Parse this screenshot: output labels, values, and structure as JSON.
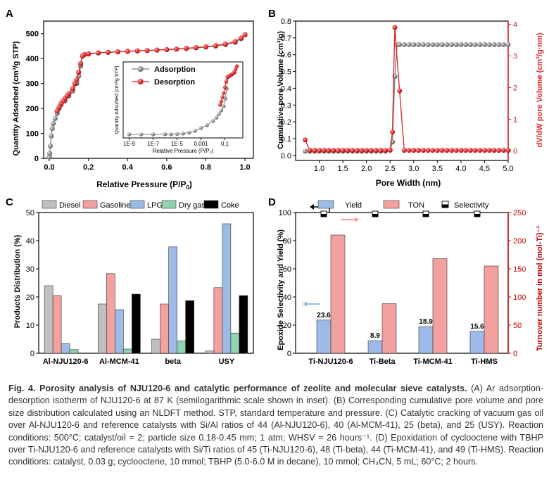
{
  "panels": {
    "A": {
      "letter": "A",
      "xlabel": "Relative Pressure (P/P",
      "xlabel_sub": "0",
      "xlabel_end": ")",
      "ylabel": "Quantity Adsorbed (cm³/g STP)"
    },
    "B": {
      "letter": "B",
      "xlabel": "Pore Width (nm)",
      "ylabel_left": "Cumulative pore Volume (cm³/g)",
      "ylabel_right": "dV/dW pore Volume (cm³/g·nm)"
    },
    "C": {
      "letter": "C",
      "ylabel": "Products Distribution (%)"
    },
    "D": {
      "letter": "D",
      "ylabel_left": "Epoxide Selectivity and Yield (%)",
      "ylabel_right": "Turnover number in mol (mol-Ti)⁻¹"
    }
  },
  "chart_data": [
    {
      "panel": "A",
      "type": "line",
      "xlim": [
        0,
        1
      ],
      "ylim": [
        0,
        550
      ],
      "xticks": [
        "0.0",
        "0.2",
        "0.4",
        "0.6",
        "0.8",
        "1.0"
      ],
      "yticks": [
        "0",
        "100",
        "200",
        "300",
        "400",
        "500"
      ],
      "legend_placement": "inset",
      "series": [
        {
          "name": "Adsorption",
          "color": "#7f7f7f",
          "x": [
            0.0,
            0.002,
            0.005,
            0.01,
            0.015,
            0.02,
            0.03,
            0.04,
            0.05,
            0.06,
            0.08,
            0.1,
            0.12,
            0.14,
            0.15,
            0.16,
            0.17,
            0.2,
            0.25,
            0.3,
            0.35,
            0.4,
            0.45,
            0.5,
            0.55,
            0.6,
            0.65,
            0.7,
            0.75,
            0.8,
            0.85,
            0.9,
            0.95,
            0.98,
            1.0
          ],
          "y": [
            5,
            20,
            50,
            90,
            120,
            140,
            160,
            180,
            200,
            215,
            230,
            250,
            270,
            300,
            330,
            370,
            410,
            418,
            422,
            425,
            427,
            429,
            430,
            432,
            434,
            436,
            438,
            440,
            443,
            446,
            450,
            456,
            465,
            480,
            495
          ]
        },
        {
          "name": "Desorption",
          "color": "#e02020",
          "x": [
            1.0,
            0.98,
            0.95,
            0.9,
            0.85,
            0.8,
            0.75,
            0.7,
            0.65,
            0.6,
            0.55,
            0.5,
            0.45,
            0.4,
            0.35,
            0.3,
            0.25,
            0.2,
            0.18,
            0.17,
            0.16,
            0.15,
            0.14,
            0.13,
            0.12,
            0.1,
            0.09,
            0.08,
            0.07,
            0.06,
            0.05,
            0.04
          ],
          "y": [
            495,
            482,
            468,
            458,
            452,
            447,
            444,
            441,
            438,
            436,
            434,
            432,
            431,
            429,
            427,
            425,
            423,
            419,
            416,
            410,
            380,
            345,
            315,
            300,
            280,
            260,
            250,
            240,
            230,
            220,
            205,
            190
          ]
        }
      ],
      "inset": {
        "xlabel": "Relative Pressure (P/P₀)",
        "ylabel": "Quantity Adsorbed (cm³/g STP)",
        "xticks": [
          "1E-9",
          "1E-7",
          "1E-5",
          "0.001",
          "0.1"
        ],
        "series": [
          {
            "name": "Adsorption",
            "color": "#7f7f7f",
            "logx": [
              -9,
              -8,
              -7,
              -6,
              -5.5,
              -5,
              -4.5,
              -4,
              -3.5,
              -3,
              -2.5,
              -2,
              -1.7,
              -1.5,
              -1.3,
              -1.1,
              -0.95,
              -0.85,
              -0.75,
              -0.6,
              -0.4,
              -0.2,
              0
            ],
            "y": [
              5,
              5,
              5,
              6,
              6,
              8,
              11,
              18,
              30,
              50,
              70,
              100,
              125,
              150,
              175,
              205,
              260,
              330,
              410,
              422,
              432,
              445,
              490
            ]
          },
          {
            "name": "Desorption",
            "color": "#e02020",
            "logx": [
              0,
              -0.1,
              -0.2,
              -0.3,
              -0.4,
              -0.5,
              -0.6,
              -0.7,
              -0.8,
              -0.9,
              -1.0,
              -1.1,
              -1.2,
              -1.3,
              -1.4
            ],
            "y": [
              490,
              470,
              450,
              440,
              432,
              428,
              423,
              418,
              412,
              380,
              340,
              300,
              270,
              240,
              215
            ]
          }
        ]
      }
    },
    {
      "panel": "B",
      "type": "line",
      "xlim": [
        0.5,
        5.0
      ],
      "ylim_left": [
        -0.03,
        0.8
      ],
      "ylim_right": [
        -0.3,
        4.1
      ],
      "xticks": [
        "1.0",
        "1.5",
        "2.0",
        "2.5",
        "3.0",
        "3.5",
        "4.0",
        "4.5",
        "5.0"
      ],
      "yticks_left": [
        "0.0",
        "0.1",
        "0.2",
        "0.3",
        "0.4",
        "0.5",
        "0.6",
        "0.7",
        "0.8"
      ],
      "yticks_right": [
        "0",
        "1",
        "2",
        "3",
        "4"
      ],
      "series": [
        {
          "name": "Cumulative pore volume",
          "axis": "left",
          "color": "#7f7f7f",
          "x": [
            0.7,
            0.8,
            0.9,
            1.0,
            1.1,
            1.2,
            1.3,
            1.4,
            1.5,
            1.6,
            1.7,
            1.8,
            1.9,
            2.0,
            2.1,
            2.2,
            2.3,
            2.4,
            2.5,
            2.55,
            2.6,
            2.65,
            2.7,
            2.8,
            2.9,
            3.0,
            3.1,
            3.2,
            3.3,
            3.4,
            3.5,
            3.6,
            3.7,
            3.8,
            3.9,
            4.0,
            4.1,
            4.2,
            4.3,
            4.4,
            4.5,
            4.6,
            4.7,
            4.8,
            4.9,
            5.0
          ],
          "y": [
            0.025,
            0.025,
            0.025,
            0.025,
            0.025,
            0.025,
            0.025,
            0.025,
            0.025,
            0.025,
            0.025,
            0.025,
            0.025,
            0.025,
            0.025,
            0.025,
            0.025,
            0.025,
            0.03,
            0.08,
            0.47,
            0.66,
            0.66,
            0.66,
            0.66,
            0.66,
            0.66,
            0.66,
            0.66,
            0.66,
            0.66,
            0.66,
            0.66,
            0.66,
            0.66,
            0.66,
            0.66,
            0.66,
            0.66,
            0.66,
            0.66,
            0.66,
            0.66,
            0.66,
            0.66,
            0.66
          ]
        },
        {
          "name": "dV/dW",
          "axis": "right",
          "color": "#e02020",
          "x": [
            0.7,
            0.8,
            0.9,
            1.0,
            1.1,
            1.2,
            1.3,
            1.4,
            1.5,
            1.6,
            1.7,
            1.8,
            1.9,
            2.0,
            2.1,
            2.2,
            2.3,
            2.4,
            2.5,
            2.55,
            2.6,
            2.7,
            2.8,
            2.9,
            3.0,
            3.1,
            3.2,
            3.3,
            3.4,
            3.5,
            3.6,
            3.7,
            3.8,
            3.9,
            4.0,
            4.1,
            4.2,
            4.3,
            4.4,
            4.5,
            4.6,
            4.7,
            4.8,
            4.9,
            5.0
          ],
          "y": [
            0.35,
            0.02,
            0.02,
            0.02,
            0.02,
            0.02,
            0.02,
            0.02,
            0.02,
            0.02,
            0.02,
            0.02,
            0.02,
            0.02,
            0.02,
            0.02,
            0.02,
            0.02,
            0.03,
            0.6,
            3.9,
            1.9,
            0.02,
            0.02,
            0.02,
            0.02,
            0.02,
            0.02,
            0.02,
            0.02,
            0.02,
            0.02,
            0.02,
            0.02,
            0.02,
            0.02,
            0.02,
            0.02,
            0.02,
            0.02,
            0.02,
            0.02,
            0.02,
            0.02,
            0.02
          ]
        }
      ]
    },
    {
      "panel": "C",
      "type": "bar",
      "categories": [
        "Al-NJU120-6",
        "Al-MCM-41",
        "beta",
        "USY"
      ],
      "ylim": [
        0,
        50
      ],
      "yticks": [
        "0",
        "10",
        "20",
        "30",
        "40",
        "50"
      ],
      "legend_placement": "top",
      "series": [
        {
          "name": "Diesel",
          "color": "#c0c0c0",
          "values": [
            24.0,
            17.5,
            5.0,
            0.8
          ]
        },
        {
          "name": "Gasoline",
          "color": "#f3a0a0",
          "values": [
            20.5,
            28.3,
            17.5,
            23.3
          ]
        },
        {
          "name": "LPG",
          "color": "#9dbbe6",
          "values": [
            3.4,
            15.5,
            37.8,
            46.0
          ]
        },
        {
          "name": "Dry gas",
          "color": "#8fd3b0",
          "values": [
            1.3,
            1.5,
            4.4,
            7.2
          ]
        },
        {
          "name": "Coke",
          "color": "#000000",
          "values": [
            0.0,
            21.0,
            18.7,
            20.5
          ]
        }
      ]
    },
    {
      "panel": "D",
      "type": "bar",
      "categories": [
        "Ti-NJU120-6",
        "Ti-Beta",
        "Ti-MCM-41",
        "Ti-HMS"
      ],
      "ylim_left": [
        0,
        100
      ],
      "ylim_right": [
        0,
        250
      ],
      "yticks_left": [
        "0",
        "20",
        "40",
        "60",
        "80",
        "100"
      ],
      "yticks_right": [
        "0",
        "50",
        "100",
        "150",
        "200",
        "250"
      ],
      "legend_placement": "top",
      "series": [
        {
          "name": "Yield",
          "axis": "left",
          "color": "#9dbbe6",
          "values": [
            23.6,
            8.9,
            18.9,
            15.6
          ],
          "labels": [
            "23.6",
            "8.9",
            "18.9",
            "15.6"
          ]
        },
        {
          "name": "TON",
          "axis": "right",
          "color": "#f3a0a0",
          "values": [
            210,
            88,
            168,
            155
          ]
        },
        {
          "name": "Selectivity",
          "axis": "left",
          "marker": "half-filled-square",
          "values": [
            99,
            99,
            99,
            99
          ]
        }
      ]
    }
  ],
  "caption": {
    "lead": "Fig. 4. Porosity analysis of NJU120-6 and catalytic performance of zeolite and molecular sieve catalysts.",
    "body": " (A) Ar adsorption-desorption isotherm of NJU120-6 at 87 K (semilogarithmic scale shown in inset). (B) Corresponding cumulative pore volume and pore size distribution calculated using an NLDFT method. STP, standard temperature and pressure. (C) Catalytic cracking of vacuum gas oil over Al-NJU120-6 and reference catalysts with Si/Al ratios of 44 (Al-NJU120-6), 40 (Al-MCM-41), 25 (beta), and 25 (USY). Reaction conditions: 500°C; catalyst/oil = 2; particle size 0.18-0.45 mm; 1 atm; WHSV = 26 hours⁻¹. (D) Epoxidation of cyclooctene with TBHP over Ti-NJU120-6 and reference catalysts with Si/Ti ratios of 45 (Ti-NJU120-6), 48 (Ti-beta), 44 (Ti-MCM-41), and 49 (Ti-HMS). Reaction conditions: catalyst, 0.03 g; cyclooctene, 10 mmol; TBHP (5.0-6.0 M in decane), 10 mmol; CH₃CN, 5 mL; 60°C; 2 hours."
  }
}
